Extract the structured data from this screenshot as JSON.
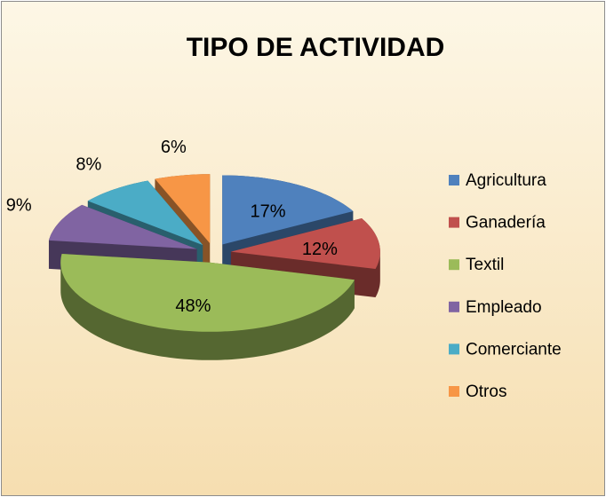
{
  "chart_data": {
    "type": "pie3d",
    "title": "TIPO DE ACTIVIDAD",
    "categories": [
      "Agricultura",
      "Ganadería",
      "Textil",
      "Empleado",
      "Comerciante",
      "Otros"
    ],
    "values": [
      17,
      12,
      48,
      9,
      8,
      6
    ],
    "value_labels": [
      "17%",
      "12%",
      "48%",
      "9%",
      "8%",
      "6%"
    ],
    "colors": [
      "#4f81bd",
      "#c0504d",
      "#9bbb59",
      "#8064a2",
      "#4bacc6",
      "#f79646"
    ],
    "legend": "right"
  }
}
